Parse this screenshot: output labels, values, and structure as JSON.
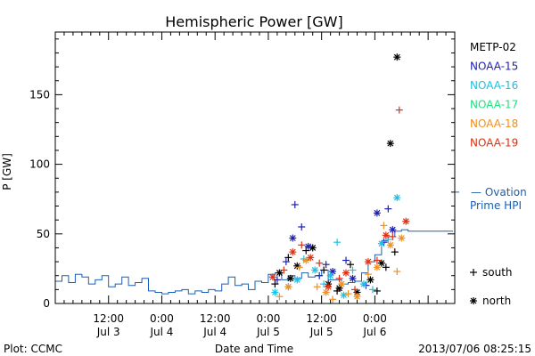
{
  "chart_data": {
    "type": "scatter",
    "title": "Hemispheric Power [GW]",
    "ylabel": "P [GW]",
    "xlabel": "Date and Time",
    "ylim": [
      0,
      195
    ],
    "yticks": [
      0,
      50,
      100,
      150
    ],
    "xlim": [
      0,
      90
    ],
    "x_unit": "hours since 2013/07/03 00:00",
    "xticks": [
      {
        "x": 12,
        "time": "12:00",
        "date": "Jul 3"
      },
      {
        "x": 24,
        "time": "0:00",
        "date": "Jul 4"
      },
      {
        "x": 36,
        "time": "12:00",
        "date": "Jul 4"
      },
      {
        "x": 48,
        "time": "0:00",
        "date": "Jul 5"
      },
      {
        "x": 60,
        "time": "12:00",
        "date": "Jul 5"
      },
      {
        "x": 72,
        "time": "0:00",
        "date": "Jul 6"
      }
    ],
    "grid": false,
    "legend_position": "right",
    "series": [
      {
        "name": "METP-02",
        "color": "#000000",
        "points": [
          {
            "x": 49.5,
            "s": "+",
            "y": 14
          },
          {
            "x": 50.5,
            "s": "*",
            "y": 22
          },
          {
            "x": 52.5,
            "s": "+",
            "y": 33
          },
          {
            "x": 53,
            "s": "*",
            "y": 18
          },
          {
            "x": 54.5,
            "s": "*",
            "y": 27
          },
          {
            "x": 56.5,
            "s": "+",
            "y": 38
          },
          {
            "x": 58,
            "s": "*",
            "y": 40
          },
          {
            "x": 60.5,
            "s": "+",
            "y": 24
          },
          {
            "x": 61.5,
            "s": "*",
            "y": 14
          },
          {
            "x": 63.5,
            "s": "+",
            "y": 9
          },
          {
            "x": 64,
            "s": "*",
            "y": 11
          },
          {
            "x": 66.5,
            "s": "+",
            "y": 28
          },
          {
            "x": 68,
            "s": "*",
            "y": 8
          },
          {
            "x": 71,
            "s": "*",
            "y": 17
          },
          {
            "x": 72.5,
            "s": "+",
            "y": 9
          },
          {
            "x": 73.5,
            "s": "*",
            "y": 29
          },
          {
            "x": 74.5,
            "s": "+",
            "y": 26
          },
          {
            "x": 75.5,
            "s": "*",
            "y": 115
          },
          {
            "x": 76.5,
            "s": "+",
            "y": 37
          },
          {
            "x": 77,
            "s": "*",
            "y": 177
          }
        ]
      },
      {
        "name": "NOAA-15",
        "color": "#2020b0",
        "points": [
          {
            "x": 50,
            "s": "+",
            "y": 17
          },
          {
            "x": 52,
            "s": "+",
            "y": 30
          },
          {
            "x": 53.5,
            "s": "*",
            "y": 47
          },
          {
            "x": 54,
            "s": "+",
            "y": 71
          },
          {
            "x": 55.5,
            "s": "+",
            "y": 55
          },
          {
            "x": 57,
            "s": "*",
            "y": 41
          },
          {
            "x": 59.5,
            "s": "+",
            "y": 20
          },
          {
            "x": 61,
            "s": "+",
            "y": 28
          },
          {
            "x": 62.5,
            "s": "*",
            "y": 23
          },
          {
            "x": 65.5,
            "s": "+",
            "y": 31
          },
          {
            "x": 67,
            "s": "*",
            "y": 18
          },
          {
            "x": 70,
            "s": "+",
            "y": 13
          },
          {
            "x": 72.5,
            "s": "*",
            "y": 65
          },
          {
            "x": 74,
            "s": "+",
            "y": 44
          },
          {
            "x": 75,
            "s": "+",
            "y": 68
          },
          {
            "x": 76,
            "s": "*",
            "y": 53
          }
        ]
      },
      {
        "name": "NOAA-16",
        "color": "#20c0e0",
        "points": [
          {
            "x": 49.5,
            "s": "*",
            "y": 8
          },
          {
            "x": 52.5,
            "s": "+",
            "y": 12
          },
          {
            "x": 54.5,
            "s": "*",
            "y": 17
          },
          {
            "x": 56,
            "s": "+",
            "y": 32
          },
          {
            "x": 58.5,
            "s": "*",
            "y": 24
          },
          {
            "x": 60.5,
            "s": "+",
            "y": 14
          },
          {
            "x": 62,
            "s": "*",
            "y": 20
          },
          {
            "x": 63.5,
            "s": "+",
            "y": 44
          },
          {
            "x": 65,
            "s": "*",
            "y": 6
          },
          {
            "x": 67,
            "s": "+",
            "y": 24
          },
          {
            "x": 69.5,
            "s": "*",
            "y": 14
          },
          {
            "x": 71.5,
            "s": "+",
            "y": 10
          },
          {
            "x": 73.5,
            "s": "*",
            "y": 43
          },
          {
            "x": 75,
            "s": "+",
            "y": 46
          },
          {
            "x": 77,
            "s": "*",
            "y": 76
          }
        ]
      },
      {
        "name": "NOAA-17",
        "color": "#20e080",
        "points": []
      },
      {
        "name": "NOAA-18",
        "color": "#f09020",
        "points": [
          {
            "x": 50.5,
            "s": "+",
            "y": 5
          },
          {
            "x": 52.5,
            "s": "*",
            "y": 12
          },
          {
            "x": 55,
            "s": "+",
            "y": 26
          },
          {
            "x": 56.5,
            "s": "*",
            "y": 31
          },
          {
            "x": 59,
            "s": "+",
            "y": 12
          },
          {
            "x": 61,
            "s": "*",
            "y": 8
          },
          {
            "x": 62.5,
            "s": "+",
            "y": 3
          },
          {
            "x": 64.5,
            "s": "*",
            "y": 14
          },
          {
            "x": 66,
            "s": "+",
            "y": 7
          },
          {
            "x": 68,
            "s": "*",
            "y": 5
          },
          {
            "x": 70.5,
            "s": "+",
            "y": 21
          },
          {
            "x": 72.5,
            "s": "*",
            "y": 26
          },
          {
            "x": 74,
            "s": "+",
            "y": 56
          },
          {
            "x": 75.5,
            "s": "*",
            "y": 42
          },
          {
            "x": 77,
            "s": "+",
            "y": 23
          },
          {
            "x": 78,
            "s": "*",
            "y": 47
          }
        ]
      },
      {
        "name": "NOAA-19",
        "color": "#e03010",
        "points": [
          {
            "x": 49,
            "s": "*",
            "y": 19
          },
          {
            "x": 51.5,
            "s": "+",
            "y": 24
          },
          {
            "x": 53.5,
            "s": "*",
            "y": 37
          },
          {
            "x": 55.5,
            "s": "+",
            "y": 42
          },
          {
            "x": 57.5,
            "s": "*",
            "y": 33
          },
          {
            "x": 59.5,
            "s": "+",
            "y": 29
          },
          {
            "x": 61.5,
            "s": "*",
            "y": 12
          },
          {
            "x": 64,
            "s": "+",
            "y": 18
          },
          {
            "x": 65.5,
            "s": "*",
            "y": 22
          },
          {
            "x": 67.5,
            "s": "+",
            "y": 10
          },
          {
            "x": 70.5,
            "s": "*",
            "y": 30
          },
          {
            "x": 72.5,
            "s": "+",
            "y": 31
          },
          {
            "x": 74.5,
            "s": "*",
            "y": 49
          },
          {
            "x": 76,
            "s": "+",
            "y": 48
          },
          {
            "x": 77.5,
            "s": "+",
            "y": 139
          },
          {
            "x": 79,
            "s": "*",
            "y": 59
          }
        ]
      }
    ],
    "ovation": {
      "name_line1": "— Ovation",
      "name_line2": "Prime HPI",
      "color": "#1a5fb0",
      "x": [
        0,
        1.5,
        3,
        4.5,
        6,
        7.5,
        9,
        10.5,
        12,
        13.5,
        15,
        16.5,
        18,
        19.5,
        21,
        22.5,
        24,
        25.5,
        27,
        28.5,
        30,
        31.5,
        33,
        34.5,
        36,
        37.5,
        39,
        40.5,
        42,
        43.5,
        45,
        46.5,
        48,
        49.5,
        51,
        52.5,
        54,
        55.5,
        57,
        58.5,
        60,
        61.5,
        63,
        64.5,
        66,
        67.5,
        69,
        70.5,
        72,
        73.5,
        75,
        76.5,
        78,
        79.5
      ],
      "y": [
        16,
        20,
        15,
        21,
        19,
        14,
        17,
        20,
        12,
        14,
        19,
        13,
        15,
        18,
        9,
        8,
        7,
        8,
        9,
        10,
        7,
        9,
        8,
        10,
        9,
        14,
        19,
        13,
        14,
        10,
        16,
        15,
        21,
        22,
        17,
        20,
        18,
        22,
        19,
        20,
        24,
        17,
        17,
        14,
        15,
        16,
        22,
        30,
        35,
        45,
        48,
        52,
        53,
        52
      ]
    },
    "markers_legend": [
      {
        "symbol": "+",
        "label": "south"
      },
      {
        "symbol": "*",
        "label": "north"
      }
    ]
  },
  "footer": {
    "left": "Plot: CCMC",
    "right": "2013/07/06 08:25:15"
  }
}
